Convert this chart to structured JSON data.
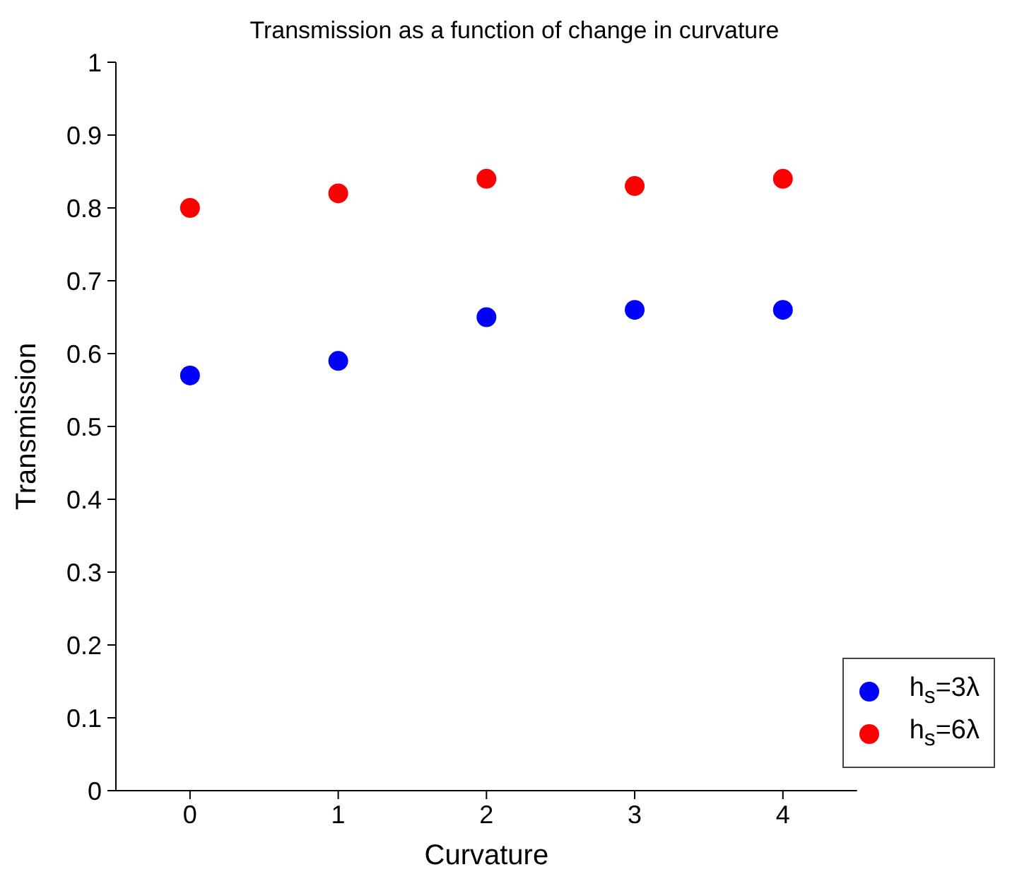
{
  "chart_data": {
    "type": "scatter",
    "title": "Transmission as a function of change in curvature",
    "xlabel": "Curvature",
    "ylabel": "Transmission",
    "x": [
      0,
      1,
      2,
      3,
      4
    ],
    "series": [
      {
        "name": "h$_{s}$=3λ",
        "color": "#0000ff",
        "values": [
          0.57,
          0.59,
          0.65,
          0.66,
          0.66
        ]
      },
      {
        "name": "h$_{s}$=6λ",
        "color": "#ff0000",
        "values": [
          0.8,
          0.82,
          0.84,
          0.83,
          0.84
        ]
      }
    ],
    "xlim": [
      -0.5,
      4.5
    ],
    "xticks": [
      0,
      1,
      2,
      3,
      4
    ],
    "ylim": [
      0,
      1
    ],
    "yticks": [
      0,
      0.1,
      0.2,
      0.3,
      0.4,
      0.5,
      0.6,
      0.7,
      0.8,
      0.9,
      1
    ],
    "marker": "circle",
    "legend": "bottom right",
    "grid": false
  }
}
